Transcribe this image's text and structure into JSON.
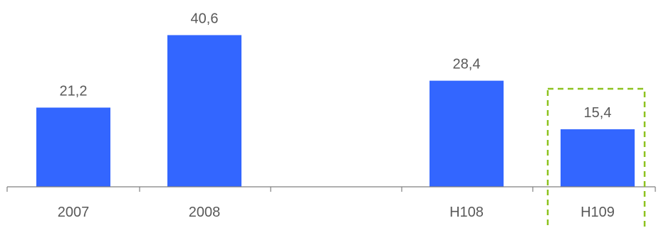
{
  "chart_data": {
    "type": "bar",
    "categories": [
      "2007",
      "2008",
      "",
      "H108",
      "H109"
    ],
    "values": [
      21.2,
      40.6,
      null,
      28.4,
      15.4
    ],
    "value_labels": [
      "21,2",
      "40,6",
      "",
      "28,4",
      "15,4"
    ],
    "title": "",
    "xlabel": "",
    "ylabel": "",
    "ylim": [
      0,
      50
    ],
    "grid": false,
    "highlighted_category": "H109",
    "colors": {
      "bar": "#3366FF",
      "axis": "#808080",
      "text": "#595959",
      "highlight": "#8DC21F"
    }
  }
}
